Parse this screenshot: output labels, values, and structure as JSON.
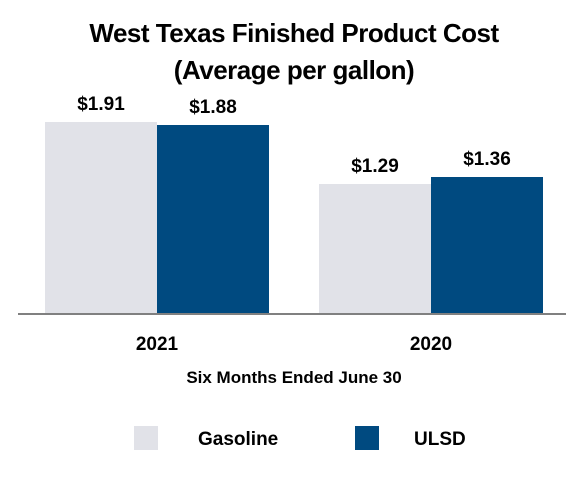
{
  "chart_data": {
    "type": "bar",
    "title": "West Texas Finished Product Cost",
    "subtitle": "(Average per gallon)",
    "xlabel": "Six Months Ended June 30",
    "ylabel": "",
    "categories": [
      "2021",
      "2020"
    ],
    "series": [
      {
        "name": "Gasoline",
        "values": [
          1.91,
          1.29
        ],
        "labels": [
          "$1.91",
          "$1.29"
        ],
        "color": "#e1e2e8"
      },
      {
        "name": "ULSD",
        "values": [
          1.88,
          1.36
        ],
        "labels": [
          "$1.88",
          "$1.36"
        ],
        "color": "#004a80"
      }
    ],
    "ylim": [
      0,
      2.0
    ],
    "grid": false,
    "legend": "bottom",
    "axis_color": "#808080"
  }
}
